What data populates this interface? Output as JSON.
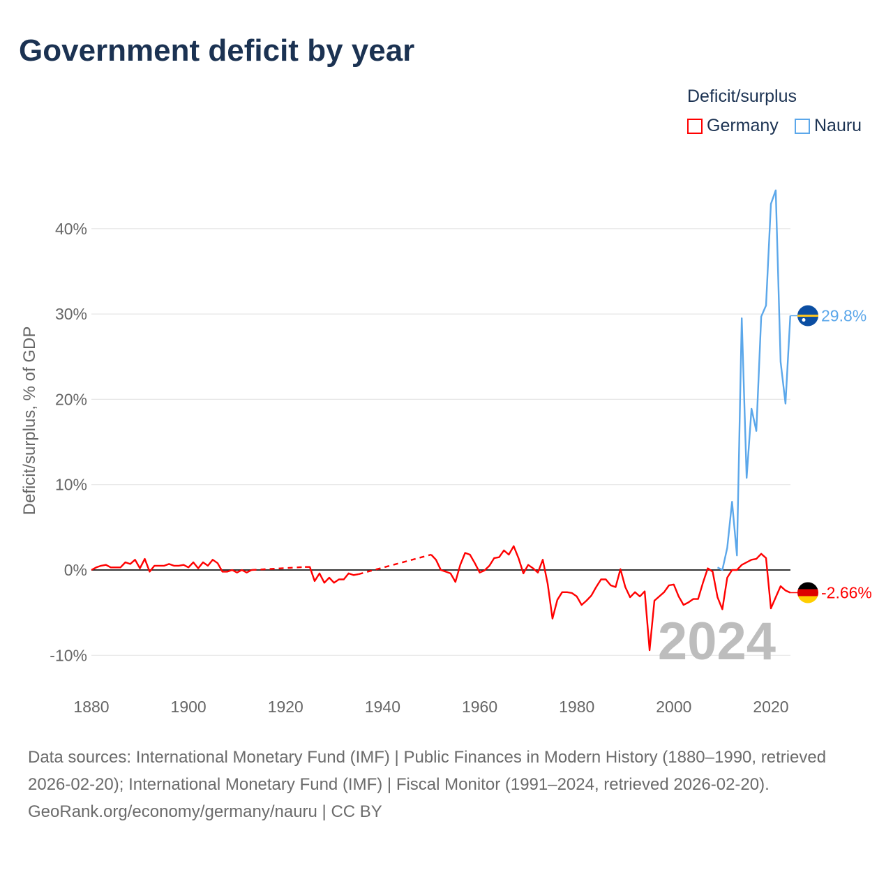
{
  "title": "Government deficit by year",
  "legend": {
    "title": "Deficit/surplus",
    "items": [
      {
        "name": "Germany",
        "color": "#ff0000"
      },
      {
        "name": "Nauru",
        "color": "#5ba7ea"
      }
    ]
  },
  "year_watermark": "2024",
  "footer": {
    "sources": "Data sources: International Monetary Fund (IMF) | Public Finances in Modern History (1880–1990, retrieved 2026-02-20); International Monetary Fund (IMF) | Fiscal Monitor (1991–2024, retrieved 2026-02-20).",
    "credit": "GeoRank.org/economy/germany/nauru | CC BY"
  },
  "chart_data": {
    "type": "line",
    "title": "Government deficit by year",
    "xlabel": "",
    "ylabel": "Deficit/surplus, % of GDP",
    "xlim": [
      1880,
      2024
    ],
    "ylim": [
      -10,
      45
    ],
    "xticks": [
      {
        "v": 1880,
        "label": "1880"
      },
      {
        "v": 1900,
        "label": "1900"
      },
      {
        "v": 1920,
        "label": "1920"
      },
      {
        "v": 1940,
        "label": "1940"
      },
      {
        "v": 1960,
        "label": "1960"
      },
      {
        "v": 1980,
        "label": "1980"
      },
      {
        "v": 2000,
        "label": "2000"
      },
      {
        "v": 2020,
        "label": "2020"
      }
    ],
    "yticks": [
      {
        "v": -10,
        "label": "-10%"
      },
      {
        "v": 0,
        "label": "0%"
      },
      {
        "v": 10,
        "label": "10%"
      },
      {
        "v": 20,
        "label": "20%"
      },
      {
        "v": 30,
        "label": "30%"
      },
      {
        "v": 40,
        "label": "40%"
      }
    ],
    "grid": true,
    "legend_position": "top-right",
    "series": [
      {
        "name": "Germany",
        "color": "#ff0000",
        "end_label": "-2.66%",
        "flag": "germany",
        "segments": [
          {
            "dashed": false,
            "points": [
              [
                1880,
                0
              ],
              [
                1881,
                0.3
              ],
              [
                1882,
                0.5
              ],
              [
                1883,
                0.6
              ],
              [
                1884,
                0.3
              ],
              [
                1885,
                0.3
              ],
              [
                1886,
                0.3
              ],
              [
                1887,
                0.9
              ],
              [
                1888,
                0.7
              ],
              [
                1889,
                1.2
              ],
              [
                1890,
                0.2
              ],
              [
                1891,
                1.3
              ],
              [
                1892,
                -0.2
              ],
              [
                1893,
                0.5
              ],
              [
                1894,
                0.5
              ],
              [
                1895,
                0.5
              ],
              [
                1896,
                0.7
              ],
              [
                1897,
                0.5
              ],
              [
                1898,
                0.5
              ],
              [
                1899,
                0.6
              ],
              [
                1900,
                0.3
              ],
              [
                1901,
                0.9
              ],
              [
                1902,
                0.2
              ],
              [
                1903,
                0.9
              ],
              [
                1904,
                0.5
              ],
              [
                1905,
                1.2
              ],
              [
                1906,
                0.8
              ],
              [
                1907,
                -0.2
              ],
              [
                1908,
                -0.2
              ],
              [
                1909,
                0
              ],
              [
                1910,
                -0.3
              ],
              [
                1911,
                0
              ],
              [
                1912,
                -0.3
              ],
              [
                1913,
                0
              ]
            ]
          },
          {
            "dashed": true,
            "points": [
              [
                1913,
                0
              ],
              [
                1924,
                0.35
              ]
            ]
          },
          {
            "dashed": false,
            "points": [
              [
                1924,
                0.35
              ],
              [
                1925,
                0.35
              ],
              [
                1926,
                -1.3
              ],
              [
                1927,
                -0.4
              ],
              [
                1928,
                -1.5
              ],
              [
                1929,
                -0.9
              ],
              [
                1930,
                -1.5
              ],
              [
                1931,
                -1.1
              ],
              [
                1932,
                -1.1
              ],
              [
                1933,
                -0.4
              ],
              [
                1934,
                -0.6
              ],
              [
                1935,
                -0.5
              ]
            ]
          },
          {
            "dashed": true,
            "points": [
              [
                1935,
                -0.5
              ],
              [
                1950,
                1.8
              ]
            ]
          },
          {
            "dashed": false,
            "points": [
              [
                1950,
                1.8
              ],
              [
                1951,
                1.2
              ],
              [
                1952,
                0
              ],
              [
                1953,
                -0.2
              ],
              [
                1954,
                -0.4
              ],
              [
                1955,
                -1.4
              ],
              [
                1956,
                0.6
              ],
              [
                1957,
                2.0
              ],
              [
                1958,
                1.8
              ],
              [
                1959,
                0.8
              ],
              [
                1960,
                -0.3
              ],
              [
                1961,
                -0.05
              ],
              [
                1962,
                0.5
              ],
              [
                1963,
                1.4
              ],
              [
                1964,
                1.5
              ],
              [
                1965,
                2.3
              ],
              [
                1966,
                1.8
              ],
              [
                1967,
                2.8
              ],
              [
                1968,
                1.4
              ],
              [
                1969,
                -0.4
              ],
              [
                1970,
                0.6
              ],
              [
                1971,
                0.2
              ],
              [
                1972,
                -0.3
              ],
              [
                1973,
                1.2
              ],
              [
                1974,
                -1.6
              ],
              [
                1975,
                -5.7
              ],
              [
                1976,
                -3.5
              ],
              [
                1977,
                -2.6
              ],
              [
                1978,
                -2.6
              ],
              [
                1979,
                -2.7
              ],
              [
                1980,
                -3.1
              ],
              [
                1981,
                -4.1
              ],
              [
                1982,
                -3.6
              ],
              [
                1983,
                -3.0
              ],
              [
                1984,
                -2.0
              ],
              [
                1985,
                -1.1
              ],
              [
                1986,
                -1.1
              ],
              [
                1987,
                -1.8
              ],
              [
                1988,
                -2.0
              ],
              [
                1989,
                0.1
              ],
              [
                1990,
                -2.0
              ],
              [
                1991,
                -3.2
              ],
              [
                1992,
                -2.6
              ],
              [
                1993,
                -3.1
              ],
              [
                1994,
                -2.5
              ],
              [
                1995,
                -9.4
              ],
              [
                1996,
                -3.6
              ],
              [
                1997,
                -3.1
              ],
              [
                1998,
                -2.6
              ],
              [
                1999,
                -1.8
              ],
              [
                2000,
                -1.7
              ],
              [
                2001,
                -3.1
              ],
              [
                2002,
                -4.1
              ],
              [
                2003,
                -3.8
              ],
              [
                2004,
                -3.4
              ],
              [
                2005,
                -3.4
              ],
              [
                2006,
                -1.5
              ],
              [
                2007,
                0.2
              ],
              [
                2008,
                -0.2
              ],
              [
                2009,
                -3.2
              ],
              [
                2010,
                -4.6
              ],
              [
                2011,
                -0.9
              ],
              [
                2012,
                0
              ],
              [
                2013,
                0
              ],
              [
                2014,
                0.6
              ],
              [
                2015,
                0.9
              ],
              [
                2016,
                1.2
              ],
              [
                2017,
                1.3
              ],
              [
                2018,
                1.9
              ],
              [
                2019,
                1.4
              ],
              [
                2020,
                -4.5
              ],
              [
                2021,
                -3.2
              ],
              [
                2022,
                -1.9
              ],
              [
                2023,
                -2.4
              ],
              [
                2024,
                -2.66
              ]
            ]
          }
        ]
      },
      {
        "name": "Nauru",
        "color": "#5ba7ea",
        "end_label": "29.8%",
        "flag": "nauru",
        "segments": [
          {
            "dashed": false,
            "points": [
              [
                2009,
                0.3
              ],
              [
                2010,
                0
              ],
              [
                2011,
                2.6
              ],
              [
                2012,
                8.0
              ],
              [
                2013,
                1.7
              ],
              [
                2014,
                29.5
              ],
              [
                2015,
                10.8
              ],
              [
                2016,
                18.9
              ],
              [
                2017,
                16.3
              ],
              [
                2018,
                29.7
              ],
              [
                2019,
                31.0
              ],
              [
                2020,
                42.9
              ],
              [
                2021,
                44.5
              ],
              [
                2022,
                24.4
              ],
              [
                2023,
                19.5
              ],
              [
                2024,
                29.8
              ]
            ]
          }
        ]
      }
    ]
  }
}
